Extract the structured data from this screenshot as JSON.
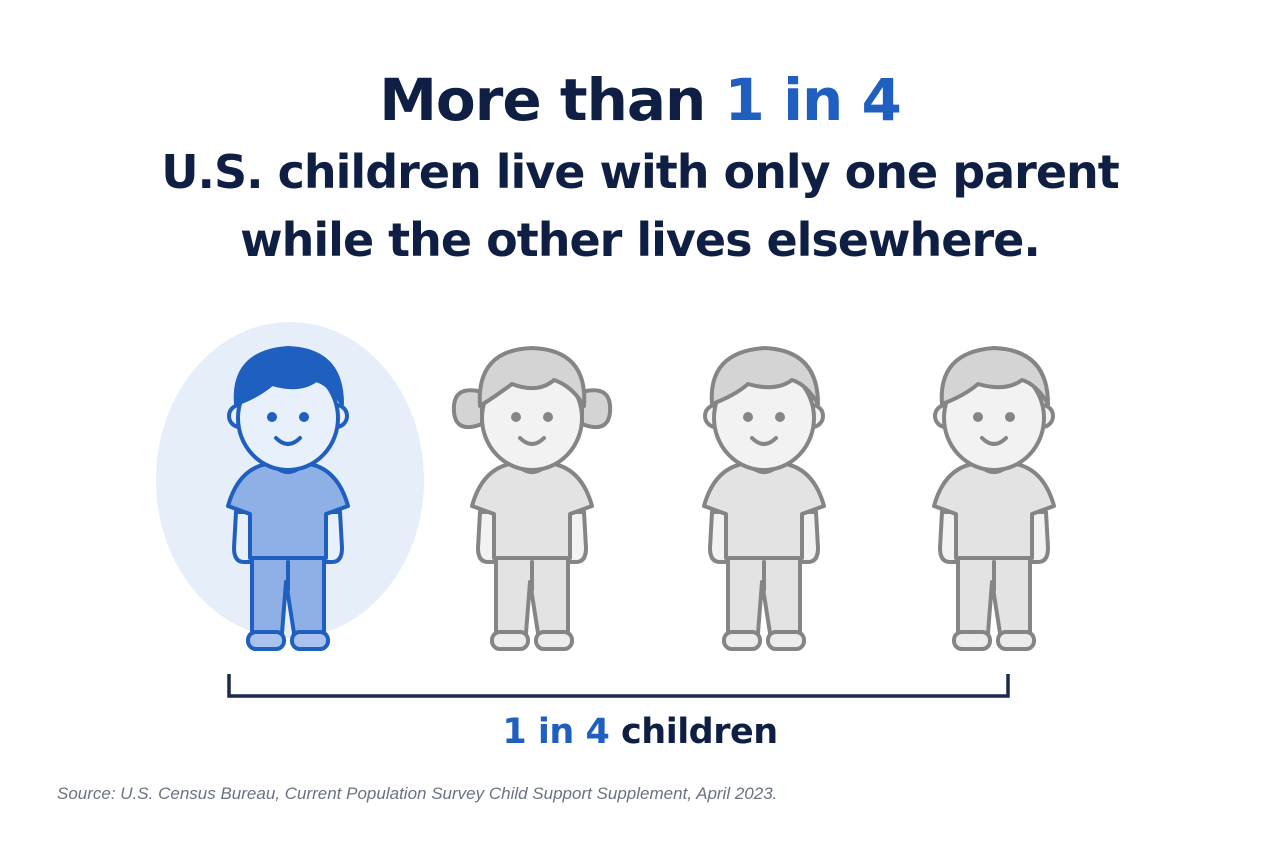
{
  "headline": {
    "prefix": "More than ",
    "highlight": "1 in 4",
    "line2": "U.S. children live with only one parent",
    "line3": "while the other lives elsewhere."
  },
  "figures": [
    {
      "label": "child-boy",
      "highlighted": true
    },
    {
      "label": "child-girl",
      "highlighted": false
    },
    {
      "label": "child-boy",
      "highlighted": false
    },
    {
      "label": "child-boy",
      "highlighted": false
    }
  ],
  "caption": {
    "highlight": "1 in 4",
    "suffix": " children"
  },
  "source": "Source: U.S. Census Bureau, Current Population Survey Child Support Supplement, April 2023.",
  "colors": {
    "accent": "#1f5fbf",
    "highlight_fill": "#8fb0e6",
    "highlight_bg": "#e6eef9",
    "gray_stroke": "#858585",
    "gray_fill": "#e3e3e3",
    "text": "#0f1f44"
  }
}
